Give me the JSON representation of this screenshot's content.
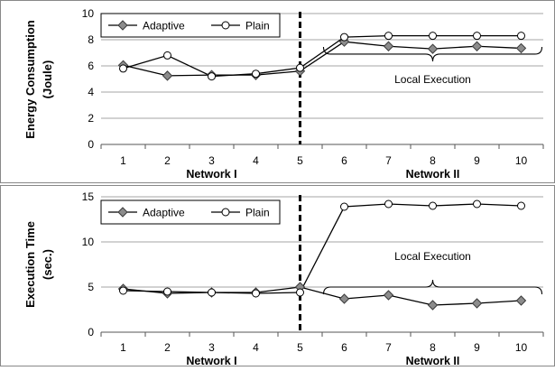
{
  "chart_data": [
    {
      "type": "line",
      "ylabel": [
        "Energy Consumption",
        "(Joule)"
      ],
      "ylim": [
        0,
        10
      ],
      "yticks": [
        0,
        2,
        4,
        6,
        8,
        10
      ],
      "x": [
        1,
        2,
        3,
        4,
        5,
        6,
        7,
        8,
        9,
        10
      ],
      "divider_x": 5,
      "network_labels": [
        {
          "text": "Network I",
          "x": 3
        },
        {
          "text": "Network II",
          "x": 8
        }
      ],
      "series": [
        {
          "name": "Adaptive",
          "marker": "diamond",
          "values": [
            6.05,
            5.25,
            5.3,
            5.3,
            5.6,
            7.85,
            7.5,
            7.3,
            7.5,
            7.35
          ]
        },
        {
          "name": "Plain",
          "marker": "circle",
          "values": [
            5.8,
            6.8,
            5.2,
            5.4,
            5.85,
            8.2,
            8.3,
            8.3,
            8.3,
            8.3
          ]
        }
      ],
      "annotation": {
        "text": "Local Execution",
        "x_from": 6,
        "x_to": 10,
        "brace_y": 6.9,
        "text_y": 4.7
      },
      "legend": {
        "placement": "top-left"
      }
    },
    {
      "type": "line",
      "ylabel": [
        "Execution Time",
        "(sec.)"
      ],
      "ylim": [
        0,
        15
      ],
      "yticks": [
        0,
        5,
        10,
        15
      ],
      "x": [
        1,
        2,
        3,
        4,
        5,
        6,
        7,
        8,
        9,
        10
      ],
      "divider_x": 5,
      "network_labels": [
        {
          "text": "Network I",
          "x": 3
        },
        {
          "text": "Network II",
          "x": 8
        }
      ],
      "series": [
        {
          "name": "Adaptive",
          "marker": "diamond",
          "values": [
            4.8,
            4.3,
            4.4,
            4.4,
            5.0,
            3.7,
            4.1,
            3.0,
            3.2,
            3.5
          ]
        },
        {
          "name": "Plain",
          "marker": "circle",
          "values": [
            4.6,
            4.5,
            4.4,
            4.3,
            4.4,
            13.9,
            14.2,
            14.0,
            14.2,
            14.0
          ]
        }
      ],
      "annotation": {
        "text": "Local Execution",
        "x_from": 6,
        "x_to": 10,
        "brace_y": 5.0,
        "text_y": 8.0
      },
      "legend": {
        "placement": "top-left"
      }
    }
  ]
}
